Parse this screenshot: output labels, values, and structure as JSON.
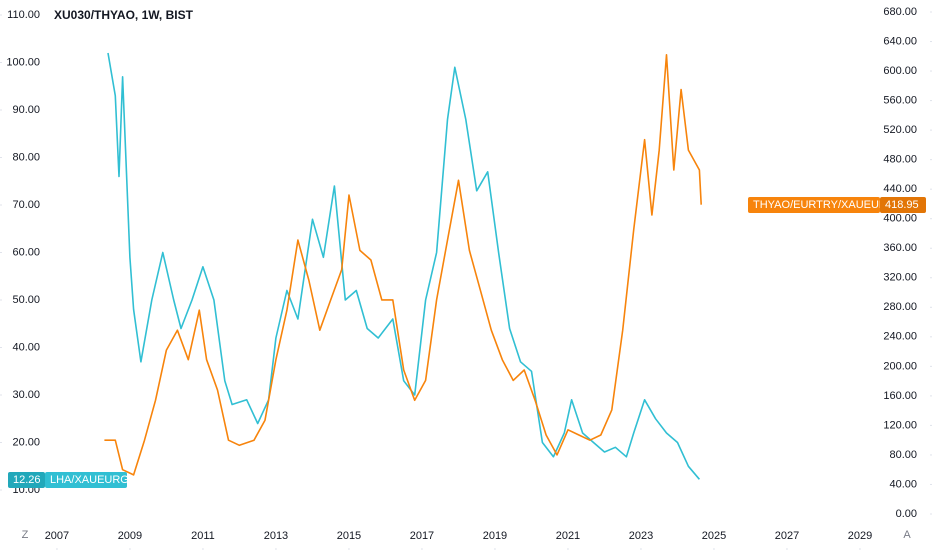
{
  "chart_data": {
    "type": "line",
    "title": "XU030/THYAO, 1W, BIST",
    "controls": [
      "Z",
      "A"
    ],
    "xlim": [
      2005.44,
      2029.22
    ],
    "xticks": [
      2007,
      2009,
      2011,
      2013,
      2015,
      2017,
      2019,
      2021,
      2023,
      2025,
      2027,
      2029
    ],
    "ylim": [
      10,
      110
    ],
    "yticks": [
      {
        "value": 10,
        "label": "10.00"
      },
      {
        "value": 20,
        "label": "20.00"
      },
      {
        "value": 30,
        "label": "30.00"
      },
      {
        "value": 40,
        "label": "40.00"
      },
      {
        "value": 50,
        "label": "50.00"
      },
      {
        "value": 60,
        "label": "60.00"
      },
      {
        "value": 70,
        "label": "70.00"
      },
      {
        "value": 80,
        "label": "80.00"
      },
      {
        "value": 90,
        "label": "90.00"
      },
      {
        "value": 100,
        "label": "100.00"
      },
      {
        "value": 110,
        "label": "110.00"
      }
    ],
    "y2lim": [
      0,
      680
    ],
    "y2ticks": [
      {
        "value": 0,
        "label": "0.00"
      },
      {
        "value": 40,
        "label": "40.00"
      },
      {
        "value": 80,
        "label": "80.00"
      },
      {
        "value": 120,
        "label": "120.00"
      },
      {
        "value": 160,
        "label": "160.00"
      },
      {
        "value": 200,
        "label": "200.00"
      },
      {
        "value": 240,
        "label": "240.00"
      },
      {
        "value": 280,
        "label": "280.00"
      },
      {
        "value": 320,
        "label": "320.00"
      },
      {
        "value": 360,
        "label": "360.00"
      },
      {
        "value": 400,
        "label": "400.00"
      },
      {
        "value": 440,
        "label": "440.00"
      },
      {
        "value": 480,
        "label": "480.00"
      },
      {
        "value": 520,
        "label": "520.00"
      },
      {
        "value": 560,
        "label": "560.00"
      },
      {
        "value": 600,
        "label": "600.00"
      },
      {
        "value": 640,
        "label": "640.00"
      },
      {
        "value": 680,
        "label": "680.00"
      }
    ],
    "series": [
      {
        "name": "LHA/XAUEURG",
        "color": "#31bfd3",
        "axis": "y",
        "x": [
          2008.4,
          2008.6,
          2008.7,
          2008.8,
          2009.0,
          2009.1,
          2009.3,
          2009.6,
          2009.9,
          2010.2,
          2010.4,
          2010.7,
          2011.0,
          2011.3,
          2011.6,
          2011.8,
          2012.2,
          2012.5,
          2012.8,
          2013.0,
          2013.3,
          2013.6,
          2014.0,
          2014.3,
          2014.6,
          2014.9,
          2015.2,
          2015.5,
          2015.8,
          2016.2,
          2016.5,
          2016.8,
          2017.1,
          2017.4,
          2017.7,
          2017.9,
          2018.2,
          2018.5,
          2018.8,
          2019.1,
          2019.4,
          2019.7,
          2020.0,
          2020.3,
          2020.6,
          2020.9,
          2021.1,
          2021.4,
          2021.7,
          2022.0,
          2022.3,
          2022.6,
          2022.8,
          2023.1,
          2023.4,
          2023.7,
          2024.0,
          2024.3,
          2024.6
        ],
        "values": [
          102,
          93,
          76,
          97,
          59,
          48,
          37,
          50,
          60,
          50,
          44,
          50,
          57,
          50,
          33,
          28,
          29,
          24,
          29,
          42,
          52,
          46,
          67,
          59,
          74,
          50,
          52,
          44,
          42,
          46,
          33,
          30,
          50,
          60,
          88,
          99,
          88,
          73,
          77,
          60,
          44,
          37,
          35,
          20,
          17,
          22,
          29,
          22,
          20,
          18,
          19,
          17,
          22,
          29,
          25,
          22,
          20,
          15,
          12.26
        ]
      },
      {
        "name": "THYAO/EURTRY/XAUEURG",
        "color": "#f7840c",
        "axis": "y2",
        "x": [
          2008.3,
          2008.6,
          2008.8,
          2009.1,
          2009.4,
          2009.7,
          2010.0,
          2010.3,
          2010.6,
          2010.9,
          2011.1,
          2011.4,
          2011.7,
          2012.0,
          2012.4,
          2012.7,
          2013.0,
          2013.3,
          2013.6,
          2013.9,
          2014.2,
          2014.5,
          2014.8,
          2015.0,
          2015.3,
          2015.6,
          2015.9,
          2016.2,
          2016.5,
          2016.8,
          2017.1,
          2017.4,
          2017.7,
          2018.0,
          2018.3,
          2018.6,
          2018.9,
          2019.2,
          2019.5,
          2019.8,
          2020.1,
          2020.4,
          2020.7,
          2021.0,
          2021.3,
          2021.6,
          2021.9,
          2022.2,
          2022.5,
          2022.8,
          2023.1,
          2023.3,
          2023.5,
          2023.7,
          2023.9,
          2024.1,
          2024.3,
          2024.6,
          2024.65
        ],
        "values": [
          100,
          100,
          60,
          53,
          100,
          154,
          222,
          249,
          209,
          276,
          209,
          168,
          100,
          93,
          100,
          127,
          209,
          276,
          371,
          317,
          249,
          290,
          331,
          432,
          357,
          344,
          290,
          290,
          195,
          154,
          181,
          290,
          371,
          452,
          357,
          303,
          249,
          209,
          181,
          195,
          154,
          107,
          80,
          114,
          107,
          100,
          107,
          141,
          249,
          385,
          507,
          405,
          493,
          622,
          466,
          575,
          493,
          466,
          418.95
        ]
      }
    ]
  }
}
